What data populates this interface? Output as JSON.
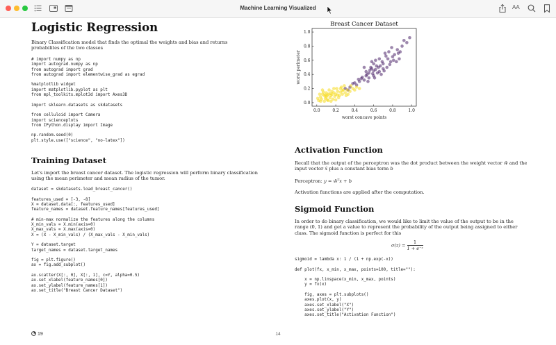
{
  "window": {
    "title": "Machine Learning Visualized",
    "font_size_label": "AA"
  },
  "left_column": {
    "heading": "Logistic Regression",
    "intro": "Binary Classification model that finds the optimal the weights and bias and returns probabilites of the two classes",
    "code_imports": "# import numpy as np\nimport autograd.numpy as np\nfrom autograd import grad\nfrom autograd import elementwise_grad as egrad\n\n%matplotlib widget\nimport matplotlib.pyplot as plt\nfrom mpl_toolkits.mplot3d import Axes3D\n\nimport sklearn.datasets as skdatasets\n\nfrom celluloid import Camera\nimport scienceplots\nfrom IPython.display import Image\n\nnp.random.seed(0)\nplt.style.use([\"science\", \"no-latex\"])",
    "training_heading": "Training Dataset",
    "training_text": "Let's import the breast cancer dataset. The logistic regression will perform binary classification using the mean perimeter and mean radius of the tumor.",
    "code_dataset": "dataset = skdatasets.load_breast_cancer()\n\nfeatures_used = [-3, -8]\nX = dataset.data[:, features_used]\nfeature_names = dataset.feature_names[features_used]\n\n# min-max normalize the features along the columns\nX_min_vals = X.min(axis=0)\nX_max_vals = X.max(axis=0)\nX = (X - X_min_vals) / (X_max_vals - X_min_vals)\n\nY = dataset.target\ntarget_names = dataset.target_names\n\nfig = plt.figure()\nax = fig.add_subplot()\n\nax.scatter(X[:, 0], X[:, 1], c=Y, alpha=0.5)\nax.set_xlabel(feature_names[0])\nax.set_ylabel(feature_names[1])\nax.set_title(\"Breast Cancer Dataset\")"
  },
  "right_column": {
    "activation_heading": "Activation Function",
    "activation_text_1": "Recall that the output of the perceptron was the dot product between the weight vector",
    "activation_w": "w̄",
    "activation_text_2": "and the input vector",
    "activation_x": "x̄",
    "activation_text_3": "plus a constant bias term",
    "activation_b": "b",
    "perceptron_label": "Perceptron:",
    "perceptron_formula": "y = w̄ᵀx + b",
    "activation_after": "Activation functions are applied after the computation.",
    "sigmoid_heading": "Sigmoid Function",
    "sigmoid_text": "In order to do binary classification, we would like to limit the value of the output to be in the range (0, 1) and get a value to represent the probability of the output being assigned to either class. The sigmoid function is perfect for this",
    "sigmoid_lhs": "σ(z) =",
    "sigmoid_num": "1",
    "sigmoid_den": "1 + e⁻ᶻ",
    "code_sigmoid": "sigmoid = lambda x: 1 / (1 + np.exp(-x))\n\ndef plot(fx, x_min, x_max, points=100, title=\"\"):\n\n    x = np.linspace(x_min, x_max, points)\n    y = fx(x)\n\n    fig, axes = plt.subplots()\n    axes.plot(x, y)\n    axes.set_xlabel(\"X\")\n    axes.set_ylabel(\"Y\")\n    axes.set_title(\"Activation Function\")"
  },
  "footer": {
    "left_count": "19",
    "page_number": "14"
  },
  "colors": {
    "class_0": "#3b0f5c",
    "class_1": "#f5d80a"
  },
  "chart_data": {
    "type": "scatter",
    "title": "Breast Cancer Dataset",
    "xlabel": "worst concave points",
    "ylabel": "worst perimeter",
    "xlim": [
      -0.05,
      1.05
    ],
    "ylim": [
      -0.05,
      1.05
    ],
    "xticks": [
      "0.0",
      "0.2",
      "0.4",
      "0.6",
      "0.8",
      "1.0"
    ],
    "yticks": [
      "0.0",
      "0.2",
      "0.4",
      "0.6",
      "0.8",
      "1.0"
    ],
    "series": [
      {
        "color": "#3b0f5c",
        "points": [
          [
            0.52,
            0.38
          ],
          [
            0.55,
            0.42
          ],
          [
            0.6,
            0.45
          ],
          [
            0.65,
            0.5
          ],
          [
            0.58,
            0.48
          ],
          [
            0.7,
            0.55
          ],
          [
            0.62,
            0.6
          ],
          [
            0.75,
            0.62
          ],
          [
            0.68,
            0.4
          ],
          [
            0.8,
            0.65
          ],
          [
            0.72,
            0.7
          ],
          [
            0.85,
            0.75
          ],
          [
            0.9,
            0.8
          ],
          [
            0.78,
            0.58
          ],
          [
            0.5,
            0.32
          ],
          [
            0.45,
            0.3
          ],
          [
            0.48,
            0.36
          ],
          [
            0.55,
            0.35
          ],
          [
            0.63,
            0.52
          ],
          [
            0.66,
            0.44
          ],
          [
            0.7,
            0.48
          ],
          [
            0.74,
            0.5
          ],
          [
            0.82,
            0.68
          ],
          [
            0.88,
            0.72
          ],
          [
            0.95,
            0.85
          ],
          [
            0.6,
            0.55
          ],
          [
            0.57,
            0.5
          ],
          [
            0.52,
            0.44
          ],
          [
            0.4,
            0.28
          ],
          [
            0.42,
            0.25
          ],
          [
            0.35,
            0.22
          ],
          [
            0.38,
            0.27
          ],
          [
            0.6,
            0.38
          ],
          [
            0.64,
            0.42
          ],
          [
            0.69,
            0.58
          ],
          [
            0.73,
            0.66
          ],
          [
            0.77,
            0.54
          ],
          [
            0.81,
            0.6
          ],
          [
            0.86,
            0.7
          ],
          [
            0.92,
            0.88
          ],
          [
            0.98,
            0.92
          ],
          [
            0.66,
            0.62
          ],
          [
            0.59,
            0.41
          ],
          [
            0.53,
            0.4
          ],
          [
            0.47,
            0.34
          ],
          [
            0.44,
            0.33
          ],
          [
            0.56,
            0.46
          ],
          [
            0.61,
            0.35
          ],
          [
            0.71,
            0.45
          ],
          [
            0.76,
            0.72
          ],
          [
            0.84,
            0.58
          ],
          [
            0.67,
            0.52
          ],
          [
            0.62,
            0.47
          ],
          [
            0.54,
            0.3
          ],
          [
            0.3,
            0.2
          ],
          [
            0.33,
            0.18
          ],
          [
            0.58,
            0.58
          ],
          [
            0.79,
            0.78
          ],
          [
            0.87,
            0.62
          ],
          [
            0.5,
            0.5
          ]
        ]
      },
      {
        "color": "#f5d80a",
        "points": [
          [
            0.05,
            0.05
          ],
          [
            0.08,
            0.1
          ],
          [
            0.1,
            0.08
          ],
          [
            0.12,
            0.12
          ],
          [
            0.15,
            0.1
          ],
          [
            0.18,
            0.14
          ],
          [
            0.2,
            0.12
          ],
          [
            0.22,
            0.16
          ],
          [
            0.25,
            0.15
          ],
          [
            0.28,
            0.18
          ],
          [
            0.3,
            0.14
          ],
          [
            0.02,
            0.03
          ],
          [
            0.04,
            0.08
          ],
          [
            0.06,
            0.12
          ],
          [
            0.09,
            0.06
          ],
          [
            0.11,
            0.04
          ],
          [
            0.14,
            0.07
          ],
          [
            0.16,
            0.16
          ],
          [
            0.19,
            0.09
          ],
          [
            0.21,
            0.2
          ],
          [
            0.24,
            0.1
          ],
          [
            0.27,
            0.12
          ],
          [
            0.32,
            0.18
          ],
          [
            0.35,
            0.16
          ],
          [
            0.38,
            0.2
          ],
          [
            0.13,
            0.18
          ],
          [
            0.07,
            0.15
          ],
          [
            0.03,
            0.12
          ],
          [
            0.17,
            0.05
          ],
          [
            0.23,
            0.07
          ],
          [
            0.26,
            0.22
          ],
          [
            0.29,
            0.24
          ],
          [
            0.33,
            0.12
          ],
          [
            0.4,
            0.18
          ],
          [
            0.42,
            0.22
          ],
          [
            0.1,
            0.14
          ],
          [
            0.12,
            0.03
          ],
          [
            0.15,
            0.02
          ],
          [
            0.08,
            0.02
          ],
          [
            0.2,
            0.04
          ],
          [
            0.18,
            0.2
          ],
          [
            0.25,
            0.2
          ],
          [
            0.31,
            0.1
          ],
          [
            0.36,
            0.24
          ],
          [
            0.14,
            0.13
          ],
          [
            0.11,
            0.1
          ],
          [
            0.09,
            0.11
          ],
          [
            0.16,
            0.12
          ],
          [
            0.22,
            0.11
          ],
          [
            0.27,
            0.17
          ],
          [
            0.04,
            0.02
          ],
          [
            0.01,
            0.06
          ],
          [
            0.06,
            0.18
          ],
          [
            0.45,
            0.2
          ]
        ]
      }
    ]
  }
}
